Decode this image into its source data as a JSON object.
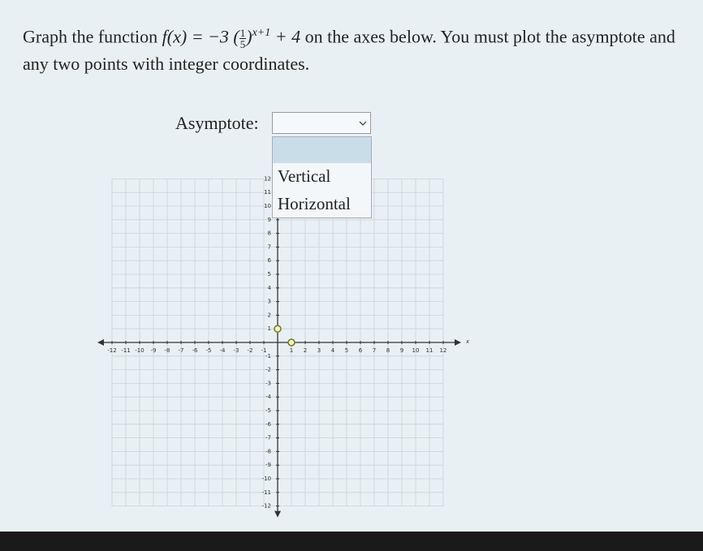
{
  "question": {
    "before": "Graph the function",
    "func_lhs": "f(x) = −3",
    "frac_num": "1",
    "frac_den": "5",
    "exponent": "x+1",
    "func_rhs": "+ 4",
    "after": "on the axes below. You must plot the asymptote and any two points with integer coordinates."
  },
  "asymptote": {
    "label": "Asymptote:",
    "options": [
      "Vertical",
      "Horizontal"
    ]
  },
  "graph": {
    "xlim": [
      -12,
      12
    ],
    "ylim": [
      -12,
      12
    ],
    "xticks": [
      -12,
      -11,
      -10,
      -9,
      -8,
      -7,
      -6,
      -5,
      -4,
      -3,
      -2,
      -1,
      1,
      2,
      3,
      4,
      5,
      6,
      7,
      8,
      9,
      10,
      11,
      12
    ],
    "yticks": [
      -12,
      -11,
      -10,
      -9,
      -8,
      -7,
      -6,
      -5,
      -4,
      -3,
      -2,
      -1,
      1,
      2,
      3,
      4,
      5,
      6,
      7,
      8,
      9,
      10,
      11,
      12
    ],
    "x_label": "x",
    "points": [
      {
        "x": 0,
        "y": 1
      },
      {
        "x": 1,
        "y": 0
      }
    ]
  }
}
